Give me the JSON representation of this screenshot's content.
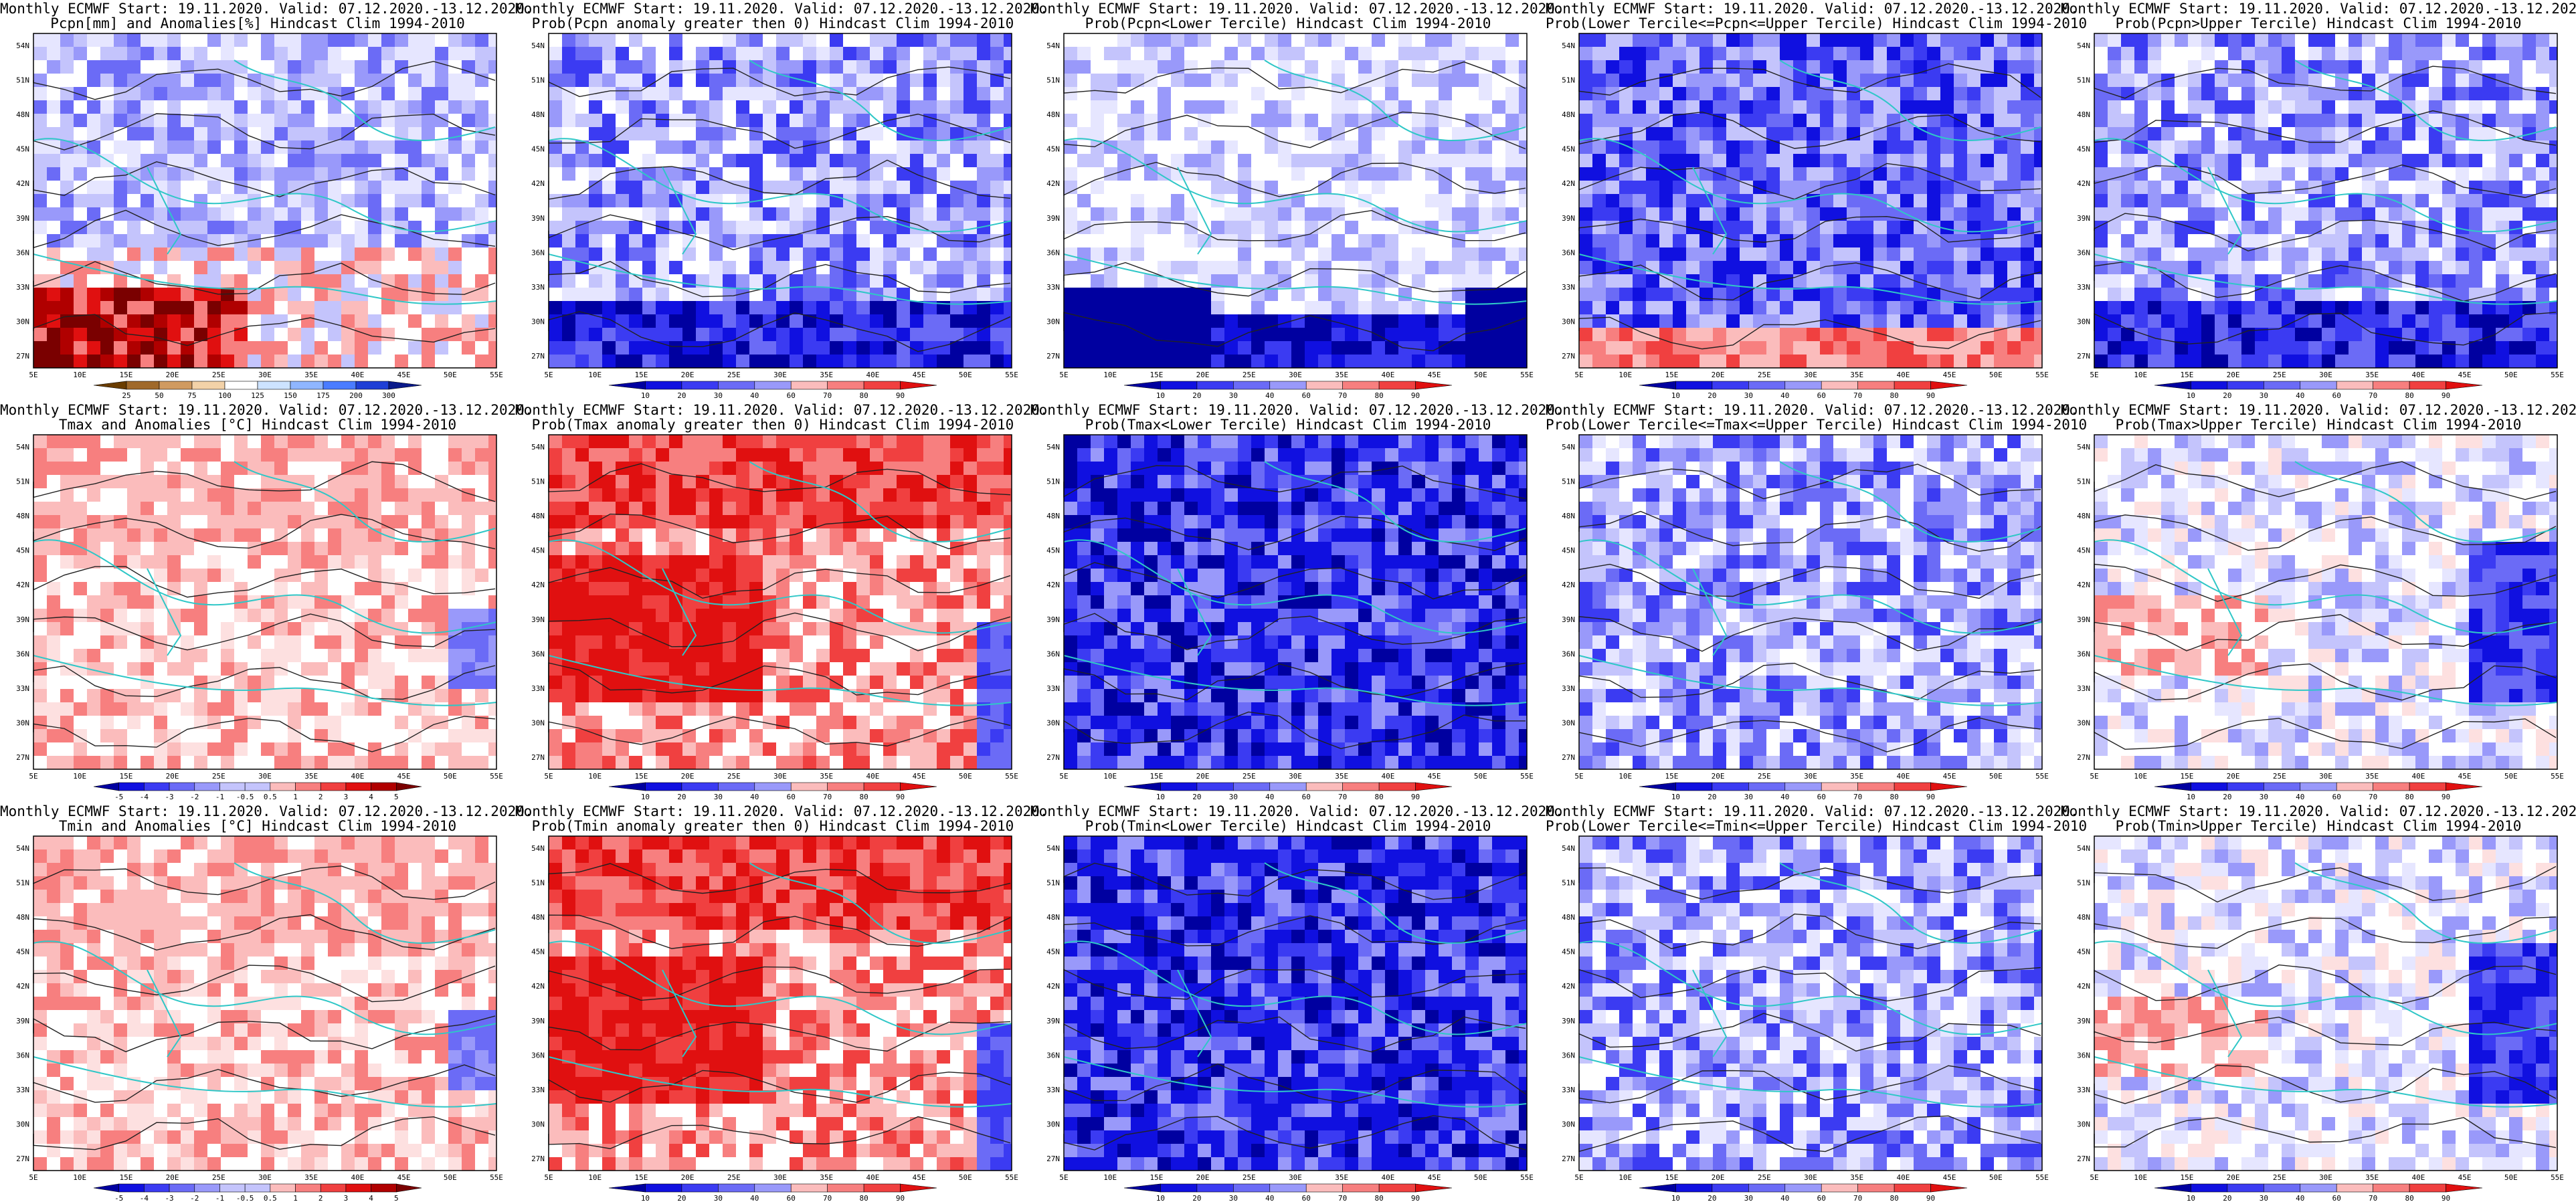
{
  "colors": {
    "coast": "#2fc7c7",
    "contour": "#222222",
    "red_scale": [
      "#7a0000",
      "#b00000",
      "#e01010",
      "#f04040",
      "#f77f7f",
      "#fbbcbc",
      "#fde0e0"
    ],
    "blue_scale": [
      "#0000a0",
      "#1010e0",
      "#3b3bf2",
      "#6b6bf6",
      "#9999fa",
      "#c4c4fc",
      "#e6e6ff"
    ],
    "white": "#ffffff"
  },
  "lat_labels": [
    "54N",
    "51N",
    "48N",
    "45N",
    "42N",
    "39N",
    "36N",
    "33N",
    "30N",
    "27N"
  ],
  "lon_labels": [
    "5E",
    "10E",
    "15E",
    "20E",
    "25E",
    "30E",
    "35E",
    "40E",
    "45E",
    "50E",
    "55E"
  ],
  "panels": [
    {
      "id": "pcpn-anom",
      "title1": "Monthly ECMWF Start: 19.11.2020. Valid: 07.12.2020.-13.12.2020.",
      "title2": "Pcpn[mm] and Anomalies[%] Hindcast Clim 1994-2010",
      "cb": [
        "25",
        "50",
        "75",
        "100",
        "125",
        "150",
        "175",
        "200",
        "300"
      ],
      "kind": "pcpn-anom"
    },
    {
      "id": "pcpn-prob-gt0",
      "title1": "Monthly ECMWF Start: 19.11.2020. Valid: 07.12.2020.-13.12.2020.",
      "title2": "Prob(Pcpn anomaly greater then 0) Hindcast Clim 1994-2010",
      "cb": [
        "10",
        "20",
        "30",
        "40",
        "60",
        "70",
        "80",
        "90"
      ],
      "kind": "blue-mid"
    },
    {
      "id": "pcpn-prob-lower",
      "title1": "Monthly ECMWF Start: 19.11.2020. Valid: 07.12.2020.-13.12.2020.",
      "title2": "Prob(Pcpn<Lower Tercile) Hindcast Clim 1994-2010",
      "cb": [
        "10",
        "20",
        "30",
        "40",
        "60",
        "70",
        "80",
        "90"
      ],
      "kind": "blue-light-south"
    },
    {
      "id": "pcpn-prob-middle",
      "title1": "Monthly ECMWF Start: 19.11.2020. Valid: 07.12.2020.-13.12.2020.",
      "title2": "Prob(Lower Tercile<=Pcpn<=Upper Tercile) Hindcast Clim 1994-2010",
      "cb": [
        "10",
        "20",
        "30",
        "40",
        "60",
        "70",
        "80",
        "90"
      ],
      "kind": "blue-red-south"
    },
    {
      "id": "pcpn-prob-upper",
      "title1": "Monthly ECMWF Start: 19.11.2020. Valid: 07.12.2020.-13.12.2020.",
      "title2": "Prob(Pcpn>Upper Tercile) Hindcast Clim 1994-2010",
      "cb": [
        "10",
        "20",
        "30",
        "40",
        "60",
        "70",
        "80",
        "90"
      ],
      "kind": "blue-mid"
    },
    {
      "id": "tmax-anom",
      "title1": "Monthly ECMWF Start: 19.11.2020. Valid: 07.12.2020.-13.12.2020.",
      "title2": "Tmax and Anomalies [°C] Hindcast Clim 1994-2010",
      "cb": [
        "-5",
        "-4",
        "-3",
        "-2",
        "-1",
        "-0.5",
        "0.5",
        "1",
        "2",
        "3",
        "4",
        "5"
      ],
      "kind": "red-light"
    },
    {
      "id": "tmax-prob-gt0",
      "title1": "Monthly ECMWF Start: 19.11.2020. Valid: 07.12.2020.-13.12.2020.",
      "title2": "Prob(Tmax anomaly greater then 0) Hindcast Clim 1994-2010",
      "cb": [
        "10",
        "20",
        "30",
        "40",
        "60",
        "70",
        "80",
        "90"
      ],
      "kind": "red-strong"
    },
    {
      "id": "tmax-prob-lower",
      "title1": "Monthly ECMWF Start: 19.11.2020. Valid: 07.12.2020.-13.12.2020.",
      "title2": "Prob(Tmax<Lower Tercile) Hindcast Clim 1994-2010",
      "cb": [
        "10",
        "20",
        "30",
        "40",
        "60",
        "70",
        "80",
        "90"
      ],
      "kind": "blue-strong"
    },
    {
      "id": "tmax-prob-middle",
      "title1": "Monthly ECMWF Start: 19.11.2020. Valid: 07.12.2020.-13.12.2020.",
      "title2": "Prob(Lower Tercile<=Tmax<=Upper Tercile) Hindcast Clim 1994-2010",
      "cb": [
        "10",
        "20",
        "30",
        "40",
        "60",
        "70",
        "80",
        "90"
      ],
      "kind": "blue-light"
    },
    {
      "id": "tmax-prob-upper",
      "title1": "Monthly ECMWF Start: 19.11.2020. Valid: 07.12.2020.-13.12.2020.",
      "title2": "Prob(Tmax>Upper Tercile) Hindcast Clim 1994-2010",
      "cb": [
        "10",
        "20",
        "30",
        "40",
        "60",
        "70",
        "80",
        "90"
      ],
      "kind": "white-mixed"
    },
    {
      "id": "tmin-anom",
      "title1": "Monthly ECMWF Start: 19.11.2020. Valid: 07.12.2020.-13.12.2020.",
      "title2": "Tmin and Anomalies [°C] Hindcast Clim 1994-2010",
      "cb": [
        "-5",
        "-4",
        "-3",
        "-2",
        "-1",
        "-0.5",
        "0.5",
        "1",
        "2",
        "3",
        "4",
        "5"
      ],
      "kind": "red-light"
    },
    {
      "id": "tmin-prob-gt0",
      "title1": "Monthly ECMWF Start: 19.11.2020. Valid: 07.12.2020.-13.12.2020.",
      "title2": "Prob(Tmin anomaly greater then 0) Hindcast Clim 1994-2010",
      "cb": [
        "10",
        "20",
        "30",
        "40",
        "60",
        "70",
        "80",
        "90"
      ],
      "kind": "red-strong"
    },
    {
      "id": "tmin-prob-lower",
      "title1": "Monthly ECMWF Start: 19.11.2020. Valid: 07.12.2020.-13.12.2020.",
      "title2": "Prob(Tmin<Lower Tercile) Hindcast Clim 1994-2010",
      "cb": [
        "10",
        "20",
        "30",
        "40",
        "60",
        "70",
        "80",
        "90"
      ],
      "kind": "blue-strong"
    },
    {
      "id": "tmin-prob-middle",
      "title1": "Monthly ECMWF Start: 19.11.2020. Valid: 07.12.2020.-13.12.2020.",
      "title2": "Prob(Lower Tercile<=Tmin<=Upper Tercile) Hindcast Clim 1994-2010",
      "cb": [
        "10",
        "20",
        "30",
        "40",
        "60",
        "70",
        "80",
        "90"
      ],
      "kind": "blue-light"
    },
    {
      "id": "tmin-prob-upper",
      "title1": "Monthly ECMWF Start: 19.11.2020. Valid: 07.12.2020.-13.12.2020.",
      "title2": "Prob(Tmin>Upper Tercile) Hindcast Clim 1994-2010",
      "cb": [
        "10",
        "20",
        "30",
        "40",
        "60",
        "70",
        "80",
        "90"
      ],
      "kind": "white-mixed"
    }
  ]
}
